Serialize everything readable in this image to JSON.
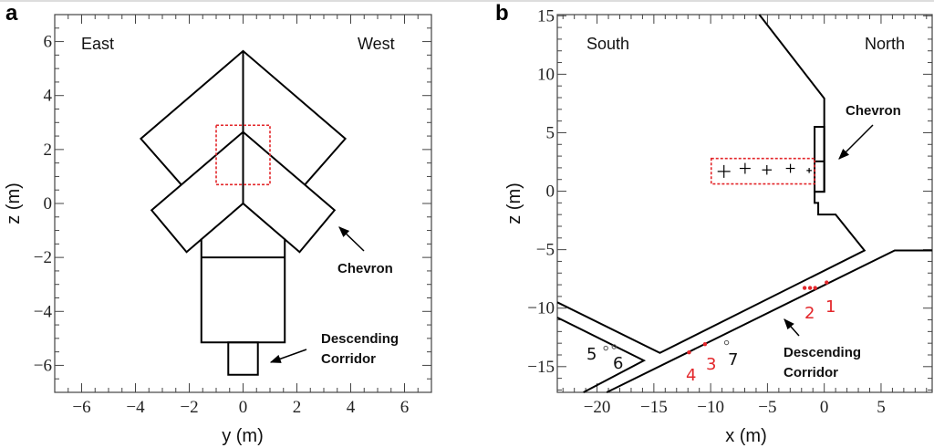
{
  "colors": {
    "structure": "#000000",
    "highlight": "#e3262a",
    "marker_red": "#e3262a",
    "marker_open": "#555555"
  },
  "panels": [
    {
      "label": "a",
      "xlabel": "y (m)",
      "ylabel": "z (m)",
      "xlim": [
        -7,
        7
      ],
      "ylim": [
        -7,
        7
      ],
      "xticks": [
        -6,
        -4,
        -2,
        0,
        2,
        4,
        6
      ],
      "yticks": [
        -6,
        -4,
        -2,
        0,
        2,
        4,
        6
      ],
      "minor_step": 0.5,
      "corner_labels": {
        "left": "East",
        "right": "West"
      },
      "annotations": {
        "chevron": "Chevron",
        "corridor_line1": "Descending",
        "corridor_line2": "Corridor"
      },
      "structures": [
        {
          "name": "upper-chevron",
          "closed": false,
          "points": [
            [
              -2.3,
              0.7
            ],
            [
              -3.8,
              2.4
            ],
            [
              0,
              5.65
            ],
            [
              3.8,
              2.4
            ],
            [
              2.3,
              0.7
            ]
          ]
        },
        {
          "name": "lower-chevron",
          "closed": true,
          "points": [
            [
              0,
              2.65
            ],
            [
              3.4,
              -0.25
            ],
            [
              2.1,
              -1.8
            ],
            [
              0,
              0
            ],
            [
              -2.1,
              -1.8
            ],
            [
              -3.4,
              -0.25
            ]
          ]
        },
        {
          "name": "center-line",
          "closed": false,
          "points": [
            [
              0,
              5.65
            ],
            [
              0,
              0
            ]
          ]
        },
        {
          "name": "corridor-upper-box",
          "closed": false,
          "points": [
            [
              -1.55,
              -1.3
            ],
            [
              -1.55,
              -5.15
            ],
            [
              1.55,
              -5.15
            ],
            [
              1.55,
              -1.3
            ]
          ]
        },
        {
          "name": "corridor-divider",
          "closed": false,
          "points": [
            [
              -1.55,
              -2
            ],
            [
              1.55,
              -2
            ]
          ]
        },
        {
          "name": "corridor-lower-box",
          "closed": true,
          "points": [
            [
              -0.55,
              -5.15
            ],
            [
              0.55,
              -5.15
            ],
            [
              0.55,
              -6.35
            ],
            [
              -0.55,
              -6.35
            ]
          ]
        }
      ],
      "highlight_box": {
        "x": [
          -1,
          1
        ],
        "z": [
          0.7,
          2.9
        ]
      }
    },
    {
      "label": "b",
      "xlabel": "x (m)",
      "ylabel": "z (m)",
      "xlim": [
        -23.5,
        9.5
      ],
      "ylim": [
        -17.2,
        15.1
      ],
      "xticks": [
        -20,
        -15,
        -10,
        -5,
        0,
        5
      ],
      "yticks": [
        -15,
        -10,
        -5,
        0,
        5,
        10,
        15
      ],
      "minor_step": 1,
      "corner_labels": {
        "left": "South",
        "right": "North"
      },
      "annotations": {
        "chevron": "Chevron",
        "corridor_line1": "Descending",
        "corridor_line2": "Corridor"
      },
      "structures": [
        {
          "name": "upper-wall",
          "closed": false,
          "points": [
            [
              -5.72,
              15.1
            ],
            [
              0,
              7.93
            ],
            [
              0,
              -0.05
            ],
            [
              -0.85,
              -0.05
            ],
            [
              -0.85,
              -1
            ],
            [
              -0.53,
              -1
            ],
            [
              -0.53,
              -2
            ],
            [
              1.0,
              -2
            ],
            [
              3.54,
              -5.07
            ],
            [
              -14.47,
              -13.83
            ],
            [
              -23.5,
              -9.5
            ]
          ]
        },
        {
          "name": "chevron-block",
          "closed": true,
          "points": [
            [
              -0.85,
              5.5
            ],
            [
              0,
              5.5
            ],
            [
              0,
              -0.05
            ],
            [
              -0.85,
              -0.05
            ]
          ]
        },
        {
          "name": "chevron-divider",
          "closed": false,
          "points": [
            [
              -0.85,
              2.55
            ],
            [
              0,
              2.55
            ]
          ]
        },
        {
          "name": "side-tunnel-wall",
          "closed": false,
          "points": [
            [
              -23.5,
              -10.8
            ],
            [
              -15.88,
              -14.48
            ],
            [
              -21.2,
              -17.2
            ]
          ]
        },
        {
          "name": "corridor-lower-wall",
          "closed": false,
          "points": [
            [
              -19.15,
              -17.2
            ],
            [
              6.2,
              -5.07
            ],
            [
              9.5,
              -5.07
            ]
          ]
        }
      ],
      "highlight_box": {
        "x": [
          -9.95,
          -0.85
        ],
        "z": [
          0.62,
          2.8
        ]
      },
      "crosses": [
        [
          -8.83,
          1.69,
          1.0
        ],
        [
          -6.97,
          1.95,
          0.85
        ],
        [
          -5.05,
          1.82,
          0.75
        ],
        [
          -2.98,
          1.95,
          0.7
        ],
        [
          -1.33,
          1.77,
          0.4
        ]
      ],
      "points": [
        {
          "label": "1",
          "style": "red",
          "coords": [
            [
              0.21,
              -7.8
            ]
          ]
        },
        {
          "label": "2",
          "style": "red",
          "coords": [
            [
              -1.73,
              -8.27
            ],
            [
              -1.25,
              -8.27
            ],
            [
              -0.8,
              -8.27
            ]
          ]
        },
        {
          "label": "3",
          "style": "red",
          "coords": [
            [
              -10.5,
              -13.08
            ]
          ]
        },
        {
          "label": "4",
          "style": "red",
          "coords": [
            [
              -11.9,
              -13.78
            ]
          ]
        },
        {
          "label": "5",
          "style": "open",
          "coords": [
            [
              -19.23,
              -13.42
            ]
          ]
        },
        {
          "label": "6",
          "style": "open",
          "coords": [
            [
              -18.5,
              -13.3
            ]
          ]
        },
        {
          "label": "7",
          "style": "open",
          "coords": [
            [
              -8.6,
              -12.95
            ]
          ]
        }
      ]
    }
  ]
}
